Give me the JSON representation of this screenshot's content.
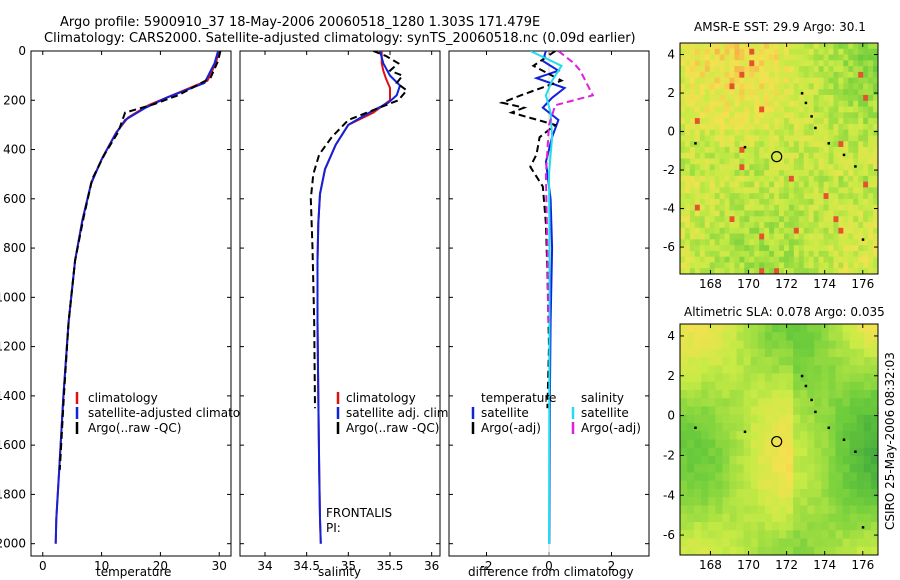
{
  "header": {
    "line1": "Argo profile:  5900910_37 18-May-2006 20060518_1280 1.303S 171.479E",
    "line2": "Climatology: CARS2000. Satellite-adjusted climatology: synTS_20060518.nc (0.09d earlier)"
  },
  "side_stamp": "CSIRO 25-May-2006 08:32:03",
  "colors": {
    "climatology": "#dd1111",
    "satellite": "#1122dd",
    "argo": "#000000",
    "salinity_satellite": "#22ddee",
    "salinity_argo": "#dd22dd"
  },
  "chart_data": [
    {
      "id": "temperature-profile",
      "type": "line",
      "xlabel": "temperature",
      "ylabel": "",
      "xlim": [
        -2,
        32
      ],
      "ylim": [
        2050,
        0
      ],
      "xticks": [
        0,
        10,
        20,
        30
      ],
      "yticks": [
        0,
        200,
        400,
        600,
        800,
        1000,
        1200,
        1400,
        1600,
        1800,
        2000
      ],
      "legend": [
        "climatology",
        "satellite-adjusted climatology",
        "Argo(..raw -QC)"
      ],
      "series": [
        {
          "name": "climatology",
          "style": "solid",
          "color": "#dd1111",
          "x": [
            30.0,
            29.4,
            28.0,
            22.0,
            18.0,
            14.5,
            12.5,
            10.2,
            8.3,
            6.8,
            5.5,
            4.4,
            3.5,
            2.8,
            2.3,
            2.2
          ],
          "y": [
            0,
            50,
            120,
            180,
            220,
            270,
            330,
            430,
            530,
            680,
            850,
            1100,
            1400,
            1700,
            1900,
            2000
          ]
        },
        {
          "name": "satellite-adjusted climatology",
          "style": "solid",
          "color": "#1122dd",
          "x": [
            29.8,
            29.2,
            27.5,
            21.0,
            17.5,
            14.0,
            12.3,
            10.0,
            8.2,
            6.7,
            5.5,
            4.4,
            3.5,
            2.8,
            2.3,
            2.2
          ],
          "y": [
            0,
            50,
            130,
            190,
            230,
            280,
            340,
            440,
            540,
            690,
            850,
            1100,
            1400,
            1700,
            1900,
            2000
          ]
        },
        {
          "name": "Argo(..raw -QC)",
          "style": "dash",
          "color": "#000000",
          "x": [
            30.2,
            29.8,
            28.5,
            23.0,
            19.0,
            14.0,
            12.8,
            10.5,
            8.4,
            6.9,
            5.5,
            4.4,
            3.6,
            2.9
          ],
          "y": [
            0,
            40,
            110,
            180,
            215,
            250,
            330,
            420,
            520,
            680,
            850,
            1100,
            1400,
            1700
          ]
        }
      ]
    },
    {
      "id": "salinity-profile",
      "type": "line",
      "xlabel": "salinity",
      "ylabel": "",
      "xlim": [
        33.7,
        36.1
      ],
      "ylim": [
        2050,
        0
      ],
      "xticks": [
        34,
        34.5,
        35,
        35.5,
        36
      ],
      "yticks": [
        0,
        200,
        400,
        600,
        800,
        1000,
        1200,
        1400,
        1600,
        1800,
        2000
      ],
      "legend": [
        "climatology",
        "satellite adj. clim.",
        "Argo(..raw -QC)"
      ],
      "annotation": [
        "FRONTALIS",
        "PI:"
      ],
      "series": [
        {
          "name": "climatology",
          "style": "solid",
          "color": "#dd1111",
          "x": [
            35.4,
            35.4,
            35.42,
            35.45,
            35.5,
            35.5,
            35.3,
            35.0,
            34.85,
            34.72,
            34.66,
            34.64,
            34.63,
            34.63,
            34.64,
            34.65,
            34.66,
            34.67
          ],
          "y": [
            0,
            50,
            80,
            110,
            150,
            200,
            250,
            300,
            380,
            480,
            580,
            700,
            850,
            1100,
            1400,
            1700,
            1900,
            2000
          ]
        },
        {
          "name": "satellite adj. clim.",
          "style": "solid",
          "color": "#1122dd",
          "x": [
            35.38,
            35.42,
            35.5,
            35.62,
            35.58,
            35.48,
            35.25,
            35.0,
            34.85,
            34.72,
            34.66,
            34.64,
            34.63,
            34.63,
            34.64,
            34.65,
            34.66,
            34.67
          ],
          "y": [
            0,
            50,
            100,
            140,
            180,
            210,
            250,
            300,
            380,
            480,
            580,
            700,
            850,
            1100,
            1400,
            1700,
            1900,
            2000
          ]
        },
        {
          "name": "Argo(..raw -QC)",
          "style": "dash",
          "color": "#000000",
          "x": [
            35.3,
            35.45,
            35.6,
            35.5,
            35.65,
            35.58,
            35.7,
            35.6,
            35.3,
            35.0,
            34.8,
            34.65,
            34.58,
            34.55,
            34.57,
            34.59,
            34.6
          ],
          "y": [
            0,
            20,
            50,
            80,
            100,
            130,
            160,
            200,
            240,
            280,
            350,
            420,
            500,
            600,
            800,
            1100,
            1450
          ]
        }
      ]
    },
    {
      "id": "difference-profile",
      "type": "line",
      "xlabel": "difference from climatology",
      "ylabel": "",
      "xlim": [
        -3.2,
        3.2
      ],
      "ylim": [
        2050,
        0
      ],
      "xticks": [
        -2,
        0,
        2
      ],
      "yticks": [
        0,
        200,
        400,
        600,
        800,
        1000,
        1200,
        1400,
        1600,
        1800,
        2000
      ],
      "legend_left": {
        "title": "temperature",
        "items": [
          "satellite",
          "Argo(-adj)"
        ]
      },
      "legend_right": {
        "title": "salinity",
        "items": [
          "satellite",
          "Argo(-adj)"
        ]
      },
      "series": [
        {
          "name": "temperature satellite",
          "style": "solid",
          "color": "#1122dd",
          "x": [
            -0.1,
            -0.2,
            0.3,
            -0.4,
            0.5,
            0.1,
            -0.2,
            0.3,
            0.1,
            -0.1,
            0.05,
            0.1,
            0.05,
            0.03,
            0.02,
            0.01
          ],
          "y": [
            0,
            40,
            80,
            110,
            150,
            190,
            230,
            280,
            350,
            450,
            600,
            800,
            1100,
            1400,
            1700,
            2000
          ]
        },
        {
          "name": "temperature Argo(-adj)",
          "style": "dash",
          "color": "#000000",
          "x": [
            0.2,
            -0.5,
            0.4,
            -0.9,
            -1.5,
            -0.8,
            -1.2,
            0.2,
            -0.3,
            -0.4,
            -0.6,
            -0.2,
            -0.1,
            -0.05,
            0.0,
            -0.05
          ],
          "y": [
            0,
            60,
            120,
            180,
            210,
            230,
            250,
            300,
            350,
            420,
            470,
            550,
            700,
            900,
            1200,
            1450
          ]
        },
        {
          "name": "salinity satellite",
          "style": "solid",
          "color": "#22ddee",
          "x": [
            -0.6,
            0.4,
            0.1,
            -0.1,
            0.05,
            0.1,
            0.0,
            0.02,
            0.01,
            0.0
          ],
          "y": [
            0,
            60,
            120,
            180,
            250,
            350,
            500,
            800,
            1400,
            2000
          ]
        },
        {
          "name": "salinity Argo(-adj)",
          "style": "dash",
          "color": "#dd22dd",
          "x": [
            0.3,
            0.8,
            1.0,
            1.4,
            0.2,
            0.0,
            -0.1,
            -0.05,
            -0.02
          ],
          "y": [
            0,
            50,
            80,
            180,
            220,
            300,
            500,
            800,
            1100
          ]
        }
      ]
    },
    {
      "id": "sst-map",
      "type": "heatmap",
      "title": "AMSR-E SST: 29.9 Argo: 30.1",
      "xlim": [
        166.4,
        176.8
      ],
      "ylim": [
        -7.4,
        4.6
      ],
      "xticks": [
        168,
        170,
        172,
        174,
        176
      ],
      "yticks": [
        4,
        2,
        0,
        -2,
        -4,
        -6
      ],
      "argo_position": [
        171.479,
        -1.303
      ]
    },
    {
      "id": "sla-map",
      "type": "heatmap",
      "title": "Altimetric SLA: 0.078 Argo: 0.035",
      "xlim": [
        166.4,
        176.8
      ],
      "ylim": [
        -7.0,
        4.6
      ],
      "xticks": [
        168,
        170,
        172,
        174,
        176
      ],
      "yticks": [
        4,
        2,
        0,
        -2,
        -4,
        -6
      ],
      "argo_position": [
        171.479,
        -1.303
      ]
    }
  ]
}
